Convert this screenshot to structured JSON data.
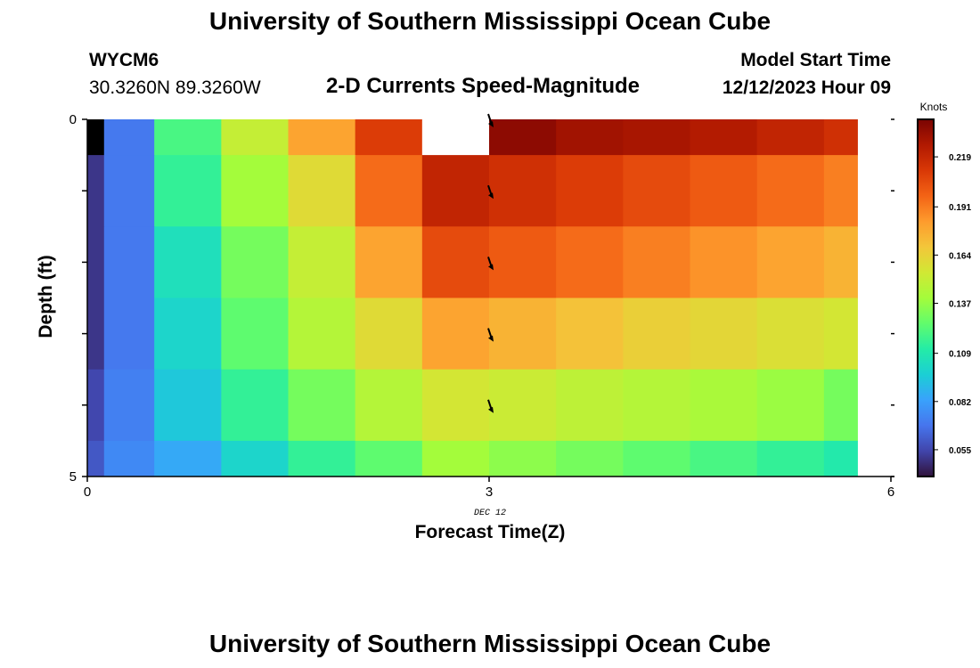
{
  "header": {
    "title": "University of Southern Mississippi Ocean Cube",
    "station": "WYCM6",
    "coords": "30.3260N  89.3260W",
    "subtitle": "2-D Currents Speed-Magnitude",
    "model_start_label": "Model Start Time",
    "model_start_value": "12/12/2023 Hour 09"
  },
  "footer": {
    "title": "University of Southern Mississippi Ocean Cube"
  },
  "chart_data": {
    "type": "heatmap",
    "ylabel": "Depth (ft)",
    "xlabel": "Forecast Time(Z)",
    "x_tick_labels": [
      "0",
      "3",
      "6"
    ],
    "x_sub_label": "DEC 12",
    "y_tick_labels": [
      "0",
      "5"
    ],
    "xlim": [
      0,
      6
    ],
    "ylim": [
      0,
      5
    ],
    "colorbar_label": "Knots",
    "colorbar_ticks": [
      "0.219",
      "0.191",
      "0.164",
      "0.137",
      "0.109",
      "0.082",
      "0.055"
    ],
    "colorbar_range": [
      0.04,
      0.24
    ],
    "column_times": [
      0.0,
      0.25,
      0.75,
      1.25,
      1.75,
      2.25,
      2.75,
      3.25,
      3.75,
      4.25,
      4.75,
      5.25,
      5.75
    ],
    "row_depths": [
      0,
      1,
      2,
      3,
      4,
      5
    ],
    "values": [
      [
        0.03,
        0.07,
        0.12,
        0.15,
        0.18,
        0.21,
        0.25,
        0.235,
        0.23,
        0.228,
        0.225,
        0.22,
        0.215
      ],
      [
        0.05,
        0.07,
        0.115,
        0.14,
        0.16,
        0.195,
        0.22,
        0.215,
        0.21,
        0.205,
        0.2,
        0.195,
        0.19
      ],
      [
        0.05,
        0.07,
        0.105,
        0.13,
        0.15,
        0.18,
        0.205,
        0.2,
        0.195,
        0.19,
        0.185,
        0.18,
        0.175
      ],
      [
        0.05,
        0.07,
        0.1,
        0.125,
        0.145,
        0.16,
        0.18,
        0.175,
        0.17,
        0.165,
        0.162,
        0.158,
        0.155
      ],
      [
        0.055,
        0.072,
        0.095,
        0.115,
        0.13,
        0.145,
        0.155,
        0.152,
        0.148,
        0.145,
        0.142,
        0.138,
        0.13
      ],
      [
        0.06,
        0.075,
        0.085,
        0.1,
        0.115,
        0.125,
        0.14,
        0.135,
        0.13,
        0.125,
        0.12,
        0.115,
        0.11
      ]
    ],
    "arrows_x": 3,
    "arrows_depth": [
      0,
      1,
      2,
      3,
      4
    ],
    "colors": {
      "max_value_cell": "#ffffff",
      "arrow": "#000000"
    }
  }
}
